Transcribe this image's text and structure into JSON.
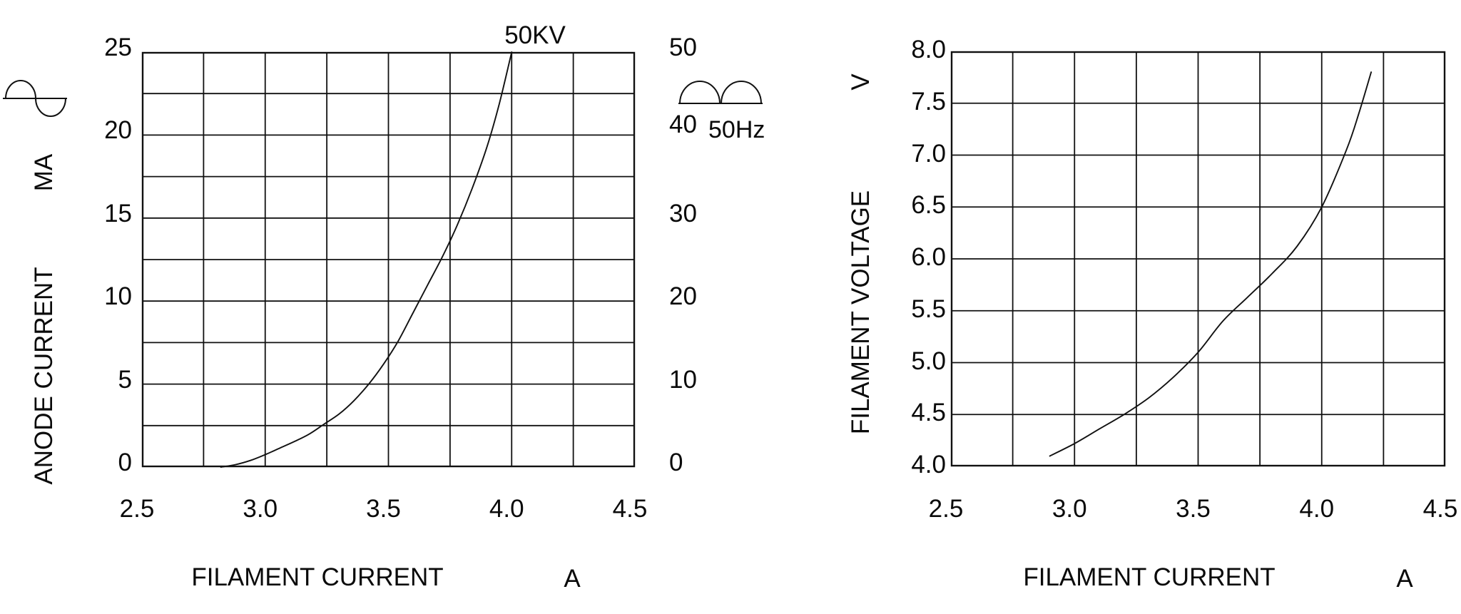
{
  "page": {
    "background": "#ffffff",
    "ink": "#111111",
    "description": "X-ray tube filament characteristic curves"
  },
  "icons": {
    "left_waveform": "ac-sine-wave-icon",
    "right_waveform": "full-wave-rectified-icon"
  },
  "chart_data": [
    {
      "type": "line",
      "title": "",
      "annotation": "50KV",
      "xlabel": "FILAMENT CURRENT",
      "x_unit": "A",
      "ylabel": "ANODE CURRENT",
      "y_unit": "MA",
      "x_range": [
        2.5,
        4.5
      ],
      "x_grid_step": 0.25,
      "y_range": [
        0,
        25
      ],
      "y_grid_step": 2.5,
      "x_ticks": [
        "2.5",
        "3.0",
        "3.5",
        "4.0",
        "4.5"
      ],
      "y_ticks": [
        "25",
        "20",
        "15",
        "10",
        "5",
        "0"
      ],
      "right_axis": {
        "range": [
          0,
          50
        ],
        "y_ticks": [
          "50",
          "40",
          "30",
          "20",
          "10",
          "0"
        ],
        "note": "50Hz"
      },
      "grid": true,
      "legend": "none",
      "series": [
        {
          "name": "anode current at 50KV",
          "points": [
            [
              2.82,
              0
            ],
            [
              2.88,
              0.15
            ],
            [
              2.94,
              0.4
            ],
            [
              3.0,
              0.75
            ],
            [
              3.06,
              1.15
            ],
            [
              3.12,
              1.55
            ],
            [
              3.18,
              2.0
            ],
            [
              3.24,
              2.6
            ],
            [
              3.3,
              3.2
            ],
            [
              3.36,
              4.0
            ],
            [
              3.42,
              5.0
            ],
            [
              3.48,
              6.2
            ],
            [
              3.54,
              7.6
            ],
            [
              3.6,
              9.3
            ],
            [
              3.66,
              11.0
            ],
            [
              3.72,
              12.7
            ],
            [
              3.78,
              14.6
            ],
            [
              3.84,
              16.8
            ],
            [
              3.9,
              19.3
            ],
            [
              3.95,
              21.9
            ],
            [
              4.0,
              25
            ]
          ]
        }
      ]
    },
    {
      "type": "line",
      "title": "",
      "annotation": "",
      "xlabel": "FILAMENT CURRENT",
      "x_unit": "A",
      "ylabel": "FILAMENT VOLTAGE",
      "y_unit": "V",
      "x_range": [
        2.5,
        4.5
      ],
      "x_grid_step": 0.25,
      "y_range": [
        4.0,
        8.0
      ],
      "y_grid_step": 0.5,
      "x_ticks": [
        "2.5",
        "3.0",
        "3.5",
        "4.0",
        "4.5"
      ],
      "y_ticks": [
        "8.0",
        "7.5",
        "7.0",
        "6.5",
        "6.0",
        "5.5",
        "5.0",
        "4.5",
        "4.0"
      ],
      "grid": true,
      "legend": "none",
      "series": [
        {
          "name": "filament voltage",
          "points": [
            [
              2.9,
              4.1
            ],
            [
              3.0,
              4.22
            ],
            [
              3.1,
              4.36
            ],
            [
              3.2,
              4.5
            ],
            [
              3.3,
              4.66
            ],
            [
              3.4,
              4.86
            ],
            [
              3.5,
              5.1
            ],
            [
              3.6,
              5.4
            ],
            [
              3.7,
              5.63
            ],
            [
              3.8,
              5.86
            ],
            [
              3.9,
              6.12
            ],
            [
              4.0,
              6.5
            ],
            [
              4.1,
              7.05
            ],
            [
              4.15,
              7.4
            ],
            [
              4.2,
              7.8
            ]
          ]
        }
      ]
    }
  ]
}
